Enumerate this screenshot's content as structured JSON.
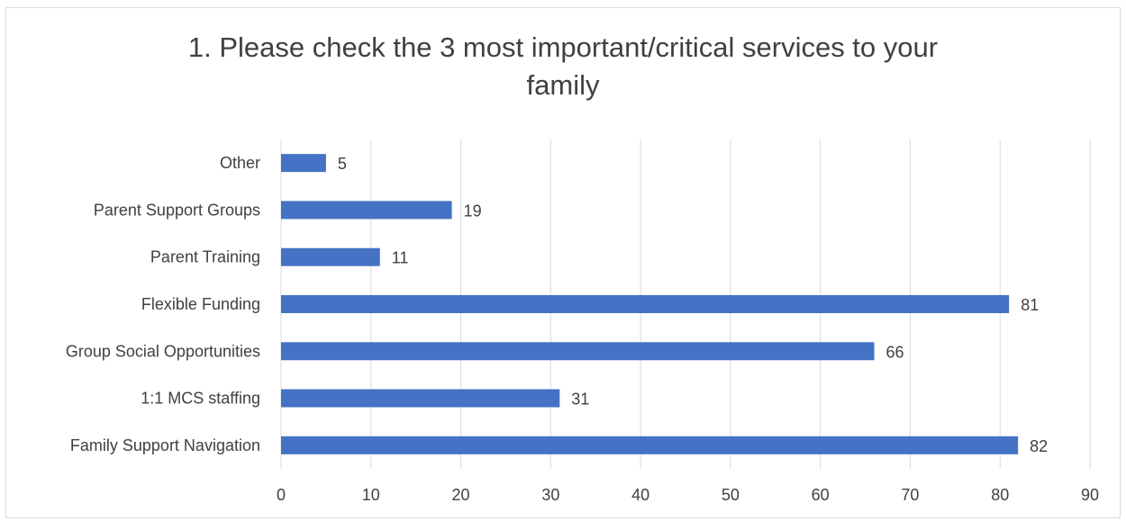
{
  "chart_data": {
    "type": "bar",
    "orientation": "horizontal",
    "title_lines": [
      "1. Please check the 3 most important/critical services to your",
      "family"
    ],
    "categories": [
      "Other",
      "Parent Support Groups",
      "Parent Training",
      "Flexible Funding",
      "Group Social Opportunities",
      "1:1 MCS staffing",
      "Family Support Navigation"
    ],
    "values": [
      5,
      19,
      11,
      81,
      66,
      31,
      82
    ],
    "xlim": [
      0,
      90
    ],
    "x_ticks": [
      0,
      10,
      20,
      30,
      40,
      50,
      60,
      70,
      80,
      90
    ],
    "grid": "vertical",
    "legend": "none",
    "bar_color": "#4472c4",
    "grid_color": "#d9d9d9",
    "text_color": "#404040"
  }
}
